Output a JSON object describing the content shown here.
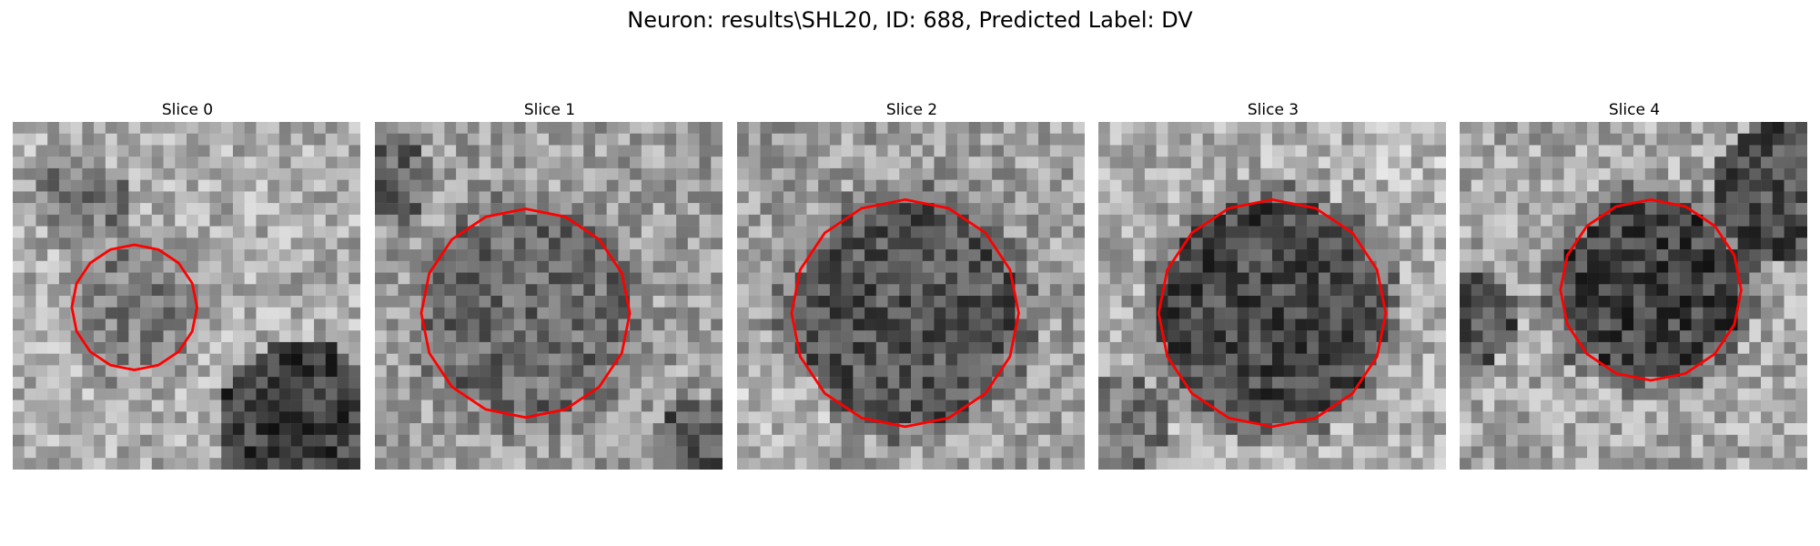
{
  "figure": {
    "title": "Neuron: results\\SHL20, ID: 688, Predicted Label: DV"
  },
  "panels": [
    {
      "title": "Slice 0"
    },
    {
      "title": "Slice 1"
    },
    {
      "title": "Slice 2"
    },
    {
      "title": "Slice 3"
    },
    {
      "title": "Slice 4"
    }
  ],
  "colors": {
    "contour": "#ff0000",
    "background": "#ffffff"
  },
  "image": {
    "pixel_grid": [
      30,
      30
    ],
    "colormap": "gray"
  }
}
